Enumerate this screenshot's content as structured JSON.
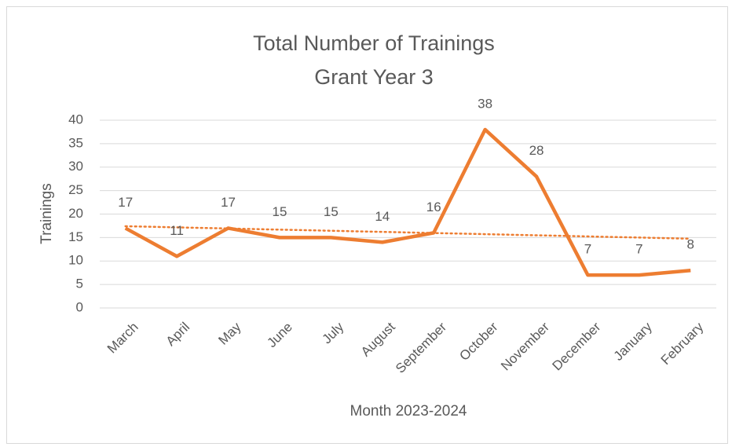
{
  "chart_data": {
    "type": "line",
    "title": [
      "Total Number of Trainings",
      "Grant Year 3"
    ],
    "xlabel": "Month 2023-2024",
    "ylabel": "Trainings",
    "categories": [
      "March",
      "April",
      "May",
      "June",
      "July",
      "August",
      "September",
      "October",
      "November",
      "December",
      "January",
      "February"
    ],
    "series": [
      {
        "name": "Trainings",
        "color": "#ed7d31",
        "values": [
          17,
          11,
          17,
          15,
          15,
          14,
          16,
          38,
          28,
          7,
          7,
          8
        ]
      }
    ],
    "ylim": [
      0,
      40
    ],
    "yticks": [
      0,
      5,
      10,
      15,
      20,
      25,
      30,
      35,
      40
    ],
    "grid": true,
    "trendline": "linear",
    "data_labels": true
  }
}
